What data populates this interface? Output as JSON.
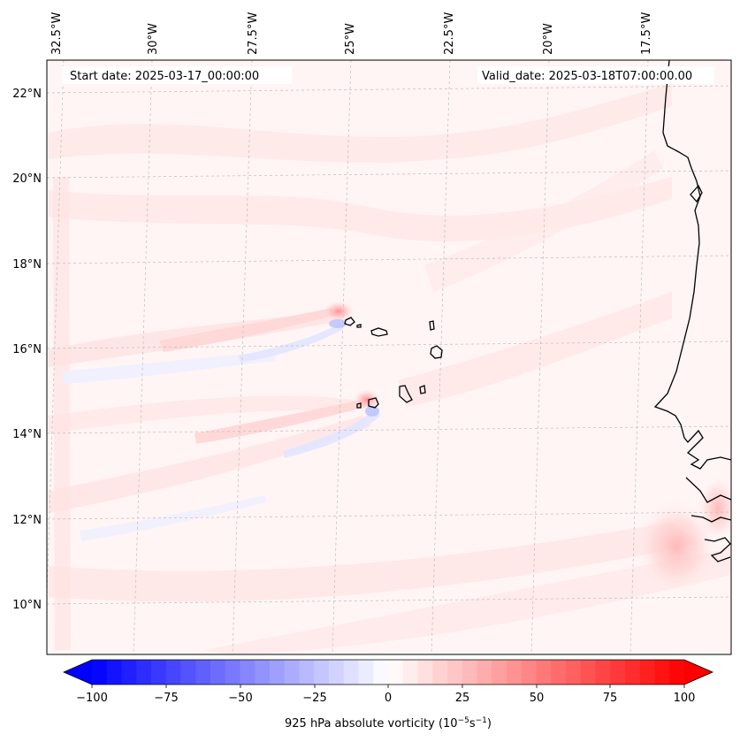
{
  "map": {
    "header": {
      "start_date": "Start date: 2025-03-17_00:00:00",
      "valid_date": "Valid_date: 2025-03-18T07:00:00.00"
    },
    "top_lon_labels": [
      "32.5°W",
      "30°W",
      "27.5°W",
      "25°W",
      "22.5°W",
      "20°W",
      "17.5°W"
    ],
    "left_lat_labels": [
      "22°N",
      "20°N",
      "18°N",
      "16°N",
      "14°N",
      "12°N",
      "10°N"
    ],
    "colorbar": {
      "ticks": [
        "−100",
        "−75",
        "−50",
        "−25",
        "0",
        "25",
        "50",
        "75",
        "100"
      ],
      "label_prefix": "925 hPa absolute vorticity (10",
      "label_exp1": "−5",
      "label_mid": "s",
      "label_exp2": "−1",
      "label_suffix": ")",
      "min": -100,
      "max": 100,
      "levels": 40,
      "cmap": "bwr"
    },
    "colors": {
      "negative": "#0000ff",
      "neutral": "#ffffff",
      "positive": "#ff0000",
      "coastline": "#000000",
      "gridline": "#b0b0b0"
    }
  }
}
